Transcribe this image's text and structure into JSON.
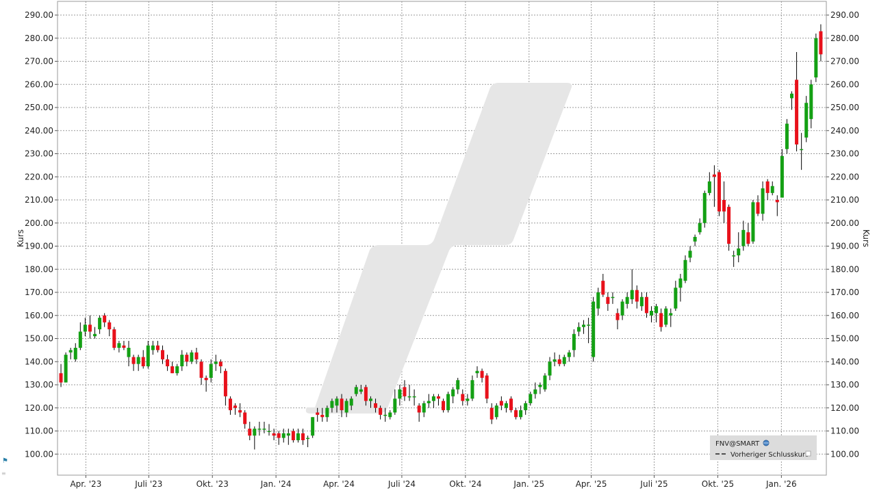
{
  "chart_data": {
    "type": "candlestick",
    "ylabel_left": "Kurs",
    "ylabel_right": "Kurs",
    "ylim": [
      90,
      295
    ],
    "y_ticks": [
      100,
      110,
      120,
      130,
      140,
      150,
      160,
      170,
      180,
      190,
      200,
      210,
      220,
      230,
      240,
      250,
      260,
      270,
      280,
      290
    ],
    "y_tick_labels": [
      "100.00",
      "110.00",
      "120.00",
      "130.00",
      "140.00",
      "150.00",
      "160.00",
      "170.00",
      "180.00",
      "190.00",
      "200.00",
      "210.00",
      "220.00",
      "230.00",
      "240.00",
      "250.00",
      "260.00",
      "270.00",
      "280.00",
      "290.00"
    ],
    "x_start": "2023-02-19",
    "x_end": "2026-03-07",
    "x_ticks": [
      {
        "date": "2023-04-01",
        "label": "Apr. '23"
      },
      {
        "date": "2023-07-01",
        "label": "Juli '23"
      },
      {
        "date": "2023-10-01",
        "label": "Okt. '23"
      },
      {
        "date": "2024-01-01",
        "label": "Jan. '24"
      },
      {
        "date": "2024-04-01",
        "label": "Apr. '24"
      },
      {
        "date": "2024-07-01",
        "label": "Juli '24"
      },
      {
        "date": "2024-10-01",
        "label": "Okt. '24"
      },
      {
        "date": "2025-01-01",
        "label": "Jan. '25"
      },
      {
        "date": "2025-04-01",
        "label": "Apr. '25"
      },
      {
        "date": "2025-07-01",
        "label": "Juli '25"
      },
      {
        "date": "2025-10-01",
        "label": "Okt. '25"
      },
      {
        "date": "2026-01-01",
        "label": "Jan. '26"
      }
    ],
    "grid": true,
    "legend": {
      "placement": "bottom-right",
      "symbol": "FNV@SMART",
      "items": [
        "Vorheriger Schlusskurs"
      ]
    },
    "colors": {
      "up": "#14a014",
      "down": "#e8111b",
      "wick": "#000000",
      "grid": "#9a9a9a",
      "watermark": "#e6e6e6",
      "legend_bg": "#dcdcdc"
    },
    "ohlc": [
      [
        "2023-02-24",
        135.0,
        139.0,
        129.0,
        131.0
      ],
      [
        "2023-03-03",
        131.0,
        144.0,
        131.0,
        143.0
      ],
      [
        "2023-03-10",
        144.0,
        146.0,
        141.0,
        145.0
      ],
      [
        "2023-03-17",
        141.0,
        148.0,
        140.0,
        146.0
      ],
      [
        "2023-03-24",
        146.0,
        157.0,
        145.0,
        153.0
      ],
      [
        "2023-03-31",
        153.0,
        159.0,
        151.0,
        156.0
      ],
      [
        "2023-04-07",
        156.0,
        160.0,
        150.0,
        153.0
      ],
      [
        "2023-04-14",
        151.0,
        155.0,
        150.0,
        152.0
      ],
      [
        "2023-04-21",
        154.0,
        160.0,
        152.0,
        159.0
      ],
      [
        "2023-04-28",
        160.0,
        161.0,
        155.0,
        157.0
      ],
      [
        "2023-05-05",
        157.0,
        158.0,
        151.0,
        154.0
      ],
      [
        "2023-05-12",
        154.0,
        155.0,
        145.0,
        146.0
      ],
      [
        "2023-05-19",
        146.0,
        149.0,
        144.0,
        148.0
      ],
      [
        "2023-05-26",
        147.0,
        149.0,
        145.0,
        146.0
      ],
      [
        "2023-06-02",
        142.0,
        149.0,
        138.0,
        146.0
      ],
      [
        "2023-06-09",
        142.0,
        143.0,
        136.0,
        139.0
      ],
      [
        "2023-06-16",
        139.0,
        143.0,
        136.0,
        142.0
      ],
      [
        "2023-06-23",
        142.0,
        145.0,
        137.0,
        138.0
      ],
      [
        "2023-06-30",
        138.0,
        149.0,
        137.0,
        147.0
      ],
      [
        "2023-07-07",
        145.0,
        149.0,
        143.0,
        147.0
      ],
      [
        "2023-07-14",
        147.0,
        149.0,
        144.0,
        145.0
      ],
      [
        "2023-07-21",
        145.0,
        147.0,
        139.0,
        141.0
      ],
      [
        "2023-07-28",
        141.0,
        143.0,
        136.0,
        138.0
      ],
      [
        "2023-08-04",
        138.0,
        140.0,
        135.0,
        135.0
      ],
      [
        "2023-08-11",
        135.0,
        139.0,
        134.0,
        138.0
      ],
      [
        "2023-08-18",
        138.0,
        145.0,
        136.0,
        143.0
      ],
      [
        "2023-08-25",
        143.0,
        144.0,
        138.0,
        140.0
      ],
      [
        "2023-09-01",
        140.0,
        145.0,
        139.0,
        144.0
      ],
      [
        "2023-09-08",
        144.0,
        146.0,
        139.0,
        141.0
      ],
      [
        "2023-09-15",
        140.0,
        141.0,
        130.0,
        133.0
      ],
      [
        "2023-09-22",
        133.0,
        134.0,
        127.0,
        132.0
      ],
      [
        "2023-09-29",
        133.0,
        141.0,
        131.0,
        139.0
      ],
      [
        "2023-10-06",
        139.0,
        143.0,
        136.0,
        140.0
      ],
      [
        "2023-10-13",
        140.0,
        141.0,
        135.0,
        138.0
      ],
      [
        "2023-10-20",
        136.0,
        137.0,
        121.0,
        125.0
      ],
      [
        "2023-10-27",
        124.0,
        125.0,
        117.0,
        119.0
      ],
      [
        "2023-11-03",
        121.0,
        122.0,
        117.0,
        120.0
      ],
      [
        "2023-11-10",
        119.0,
        122.0,
        116.0,
        118.0
      ],
      [
        "2023-11-17",
        118.0,
        119.0,
        111.0,
        113.0
      ],
      [
        "2023-11-24",
        111.0,
        114.0,
        106.0,
        108.0
      ],
      [
        "2023-12-01",
        108.0,
        112.0,
        102.0,
        111.0
      ],
      [
        "2023-12-08",
        111.0,
        114.0,
        108.0,
        111.0
      ],
      [
        "2023-12-15",
        111.0,
        114.0,
        109.0,
        111.0
      ],
      [
        "2023-12-22",
        110.0,
        113.0,
        108.0,
        110.0
      ],
      [
        "2023-12-29",
        109.0,
        111.0,
        106.0,
        108.0
      ],
      [
        "2024-01-05",
        109.0,
        110.0,
        104.0,
        107.0
      ],
      [
        "2024-01-12",
        107.0,
        111.0,
        105.0,
        109.0
      ],
      [
        "2024-01-19",
        108.0,
        111.0,
        104.0,
        109.0
      ],
      [
        "2024-01-26",
        110.0,
        111.0,
        105.0,
        106.0
      ],
      [
        "2024-02-02",
        106.0,
        111.0,
        105.0,
        109.0
      ],
      [
        "2024-02-09",
        109.0,
        111.0,
        104.0,
        106.0
      ],
      [
        "2024-02-16",
        107.0,
        108.0,
        103.0,
        107.0
      ],
      [
        "2024-02-23",
        108.0,
        116.0,
        107.0,
        116.0
      ],
      [
        "2024-03-01",
        118.0,
        120.0,
        114.0,
        117.0
      ],
      [
        "2024-03-08",
        117.0,
        120.0,
        114.0,
        116.0
      ],
      [
        "2024-03-15",
        116.0,
        121.0,
        114.0,
        120.0
      ],
      [
        "2024-03-22",
        120.0,
        124.0,
        118.0,
        123.0
      ],
      [
        "2024-03-29",
        121.0,
        125.0,
        118.0,
        124.0
      ],
      [
        "2024-04-05",
        124.0,
        126.0,
        116.0,
        119.0
      ],
      [
        "2024-04-12",
        118.0,
        124.0,
        116.0,
        123.0
      ],
      [
        "2024-04-19",
        121.0,
        125.0,
        119.0,
        124.0
      ],
      [
        "2024-04-26",
        126.0,
        130.0,
        125.0,
        129.0
      ],
      [
        "2024-05-03",
        127.0,
        130.0,
        126.0,
        128.0
      ],
      [
        "2024-05-10",
        129.0,
        130.0,
        121.0,
        123.0
      ],
      [
        "2024-05-17",
        123.0,
        125.0,
        120.0,
        124.0
      ],
      [
        "2024-05-24",
        122.0,
        124.0,
        118.0,
        120.0
      ],
      [
        "2024-05-31",
        120.0,
        121.0,
        115.0,
        117.0
      ],
      [
        "2024-06-07",
        117.0,
        120.0,
        114.0,
        117.0
      ],
      [
        "2024-06-14",
        116.0,
        119.0,
        115.0,
        118.0
      ],
      [
        "2024-06-21",
        118.0,
        128.0,
        117.0,
        124.0
      ],
      [
        "2024-06-28",
        124.0,
        130.0,
        121.0,
        128.0
      ],
      [
        "2024-07-05",
        129.0,
        132.0,
        123.0,
        125.0
      ],
      [
        "2024-07-12",
        125.0,
        130.0,
        123.0,
        125.0
      ],
      [
        "2024-07-19",
        125.0,
        128.0,
        121.0,
        125.0
      ],
      [
        "2024-07-26",
        121.0,
        122.0,
        114.0,
        118.0
      ],
      [
        "2024-08-02",
        118.0,
        123.0,
        116.0,
        122.0
      ],
      [
        "2024-08-09",
        122.0,
        126.0,
        120.0,
        123.0
      ],
      [
        "2024-08-16",
        123.0,
        126.0,
        120.0,
        125.0
      ],
      [
        "2024-08-23",
        125.0,
        126.0,
        121.0,
        124.0
      ],
      [
        "2024-08-30",
        123.0,
        124.0,
        118.0,
        119.0
      ],
      [
        "2024-09-06",
        119.0,
        127.0,
        118.0,
        126.0
      ],
      [
        "2024-09-13",
        125.0,
        129.0,
        122.0,
        128.0
      ],
      [
        "2024-09-20",
        128.0,
        133.0,
        126.0,
        132.0
      ],
      [
        "2024-09-27",
        126.0,
        128.0,
        121.0,
        123.0
      ],
      [
        "2024-10-04",
        123.0,
        126.0,
        121.0,
        124.0
      ],
      [
        "2024-10-11",
        124.0,
        134.0,
        123.0,
        132.0
      ],
      [
        "2024-10-18",
        135.0,
        138.0,
        133.0,
        136.0
      ],
      [
        "2024-10-25",
        136.0,
        137.0,
        131.0,
        133.0
      ],
      [
        "2024-11-01",
        134.0,
        135.0,
        122.0,
        124.0
      ],
      [
        "2024-11-08",
        120.0,
        122.0,
        113.0,
        115.0
      ],
      [
        "2024-11-15",
        116.0,
        122.0,
        115.0,
        121.0
      ],
      [
        "2024-11-22",
        123.0,
        125.0,
        119.0,
        121.0
      ],
      [
        "2024-11-29",
        120.0,
        123.0,
        118.0,
        122.0
      ],
      [
        "2024-12-06",
        124.0,
        125.0,
        118.0,
        119.0
      ],
      [
        "2024-12-13",
        119.0,
        120.0,
        115.0,
        116.0
      ],
      [
        "2024-12-20",
        116.0,
        121.0,
        115.0,
        119.0
      ],
      [
        "2024-12-27",
        119.0,
        123.0,
        117.0,
        122.0
      ],
      [
        "2025-01-03",
        122.0,
        127.0,
        121.0,
        126.0
      ],
      [
        "2025-01-10",
        126.0,
        131.0,
        124.0,
        128.0
      ],
      [
        "2025-01-17",
        129.0,
        131.0,
        126.0,
        130.0
      ],
      [
        "2025-01-24",
        128.0,
        135.0,
        127.0,
        134.0
      ],
      [
        "2025-01-31",
        134.0,
        142.0,
        132.0,
        140.0
      ],
      [
        "2025-02-07",
        140.0,
        144.0,
        138.0,
        141.0
      ],
      [
        "2025-02-14",
        141.0,
        143.0,
        138.0,
        139.0
      ],
      [
        "2025-02-21",
        139.0,
        143.0,
        138.0,
        142.0
      ],
      [
        "2025-02-28",
        142.0,
        145.0,
        140.0,
        144.0
      ],
      [
        "2025-03-07",
        145.0,
        154.0,
        142.0,
        152.0
      ],
      [
        "2025-03-14",
        153.0,
        157.0,
        151.0,
        155.0
      ],
      [
        "2025-03-21",
        155.0,
        158.0,
        152.0,
        156.0
      ],
      [
        "2025-03-28",
        156.0,
        159.0,
        148.0,
        156.0
      ],
      [
        "2025-04-04",
        142.0,
        168.0,
        140.0,
        166.0
      ],
      [
        "2025-04-11",
        163.0,
        172.0,
        160.0,
        170.0
      ],
      [
        "2025-04-18",
        175.0,
        178.0,
        168.0,
        169.0
      ],
      [
        "2025-04-25",
        168.0,
        170.0,
        162.0,
        165.0
      ],
      [
        "2025-05-02",
        168.0,
        170.0,
        165.0,
        168.0
      ],
      [
        "2025-05-09",
        161.0,
        163.0,
        154.0,
        158.0
      ],
      [
        "2025-05-16",
        160.0,
        167.0,
        158.0,
        166.0
      ],
      [
        "2025-05-23",
        165.0,
        170.0,
        163.0,
        168.0
      ],
      [
        "2025-05-30",
        167.0,
        180.0,
        165.0,
        171.0
      ],
      [
        "2025-06-06",
        171.0,
        173.0,
        163.0,
        166.0
      ],
      [
        "2025-06-13",
        164.0,
        170.0,
        162.0,
        168.0
      ],
      [
        "2025-06-20",
        168.0,
        170.0,
        159.0,
        161.0
      ],
      [
        "2025-06-27",
        160.0,
        164.0,
        157.0,
        162.0
      ],
      [
        "2025-07-04",
        161.0,
        165.0,
        157.0,
        164.0
      ],
      [
        "2025-07-11",
        161.0,
        163.0,
        153.0,
        155.0
      ],
      [
        "2025-07-18",
        156.0,
        164.0,
        155.0,
        163.0
      ],
      [
        "2025-07-25",
        160.0,
        163.0,
        155.0,
        161.0
      ],
      [
        "2025-08-01",
        163.0,
        175.0,
        162.0,
        172.0
      ],
      [
        "2025-08-08",
        172.0,
        178.0,
        166.0,
        176.0
      ],
      [
        "2025-08-15",
        175.0,
        186.0,
        174.0,
        184.0
      ],
      [
        "2025-08-22",
        185.0,
        190.0,
        183.0,
        188.0
      ],
      [
        "2025-08-29",
        192.0,
        195.0,
        190.0,
        194.0
      ],
      [
        "2025-09-05",
        196.0,
        202.0,
        195.0,
        200.0
      ],
      [
        "2025-09-12",
        200.0,
        214.0,
        198.0,
        213.0
      ],
      [
        "2025-09-19",
        213.0,
        222.0,
        212.0,
        218.0
      ],
      [
        "2025-09-26",
        221.0,
        225.0,
        207.0,
        220.0
      ],
      [
        "2025-10-03",
        222.0,
        223.0,
        203.0,
        205.0
      ],
      [
        "2025-10-10",
        210.0,
        218.0,
        200.0,
        205.0
      ],
      [
        "2025-10-17",
        207.0,
        208.0,
        188.0,
        191.0
      ],
      [
        "2025-10-24",
        186.0,
        188.0,
        181.0,
        186.0
      ],
      [
        "2025-10-31",
        186.0,
        196.0,
        183.0,
        189.0
      ],
      [
        "2025-11-07",
        190.0,
        201.0,
        188.0,
        197.0
      ],
      [
        "2025-11-14",
        196.0,
        200.0,
        190.0,
        191.0
      ],
      [
        "2025-11-21",
        192.0,
        210.0,
        191.0,
        209.0
      ],
      [
        "2025-11-28",
        209.0,
        212.0,
        203.0,
        204.0
      ],
      [
        "2025-12-05",
        204.0,
        218.0,
        201.0,
        215.0
      ],
      [
        "2025-12-12",
        218.0,
        219.0,
        210.0,
        213.0
      ],
      [
        "2025-12-19",
        213.0,
        218.0,
        212.0,
        216.0
      ],
      [
        "2025-12-26",
        210.0,
        212.0,
        203.0,
        209.0
      ],
      [
        "2026-01-02",
        211.0,
        232.0,
        211.0,
        229.0
      ],
      [
        "2026-01-09",
        232.0,
        245.0,
        230.0,
        243.0
      ],
      [
        "2026-01-16",
        254.0,
        257.0,
        249.0,
        256.0
      ],
      [
        "2026-01-23",
        262.0,
        274.0,
        231.0,
        234.0
      ],
      [
        "2026-01-30",
        232.0,
        239.0,
        223.0,
        232.0
      ],
      [
        "2026-02-06",
        237.0,
        255.0,
        235.0,
        252.0
      ],
      [
        "2026-02-13",
        245.0,
        262.0,
        241.0,
        260.0
      ],
      [
        "2026-02-20",
        263.0,
        282.0,
        261.0,
        280.0
      ],
      [
        "2026-02-27",
        283.0,
        286.0,
        270.0,
        273.0
      ]
    ]
  }
}
